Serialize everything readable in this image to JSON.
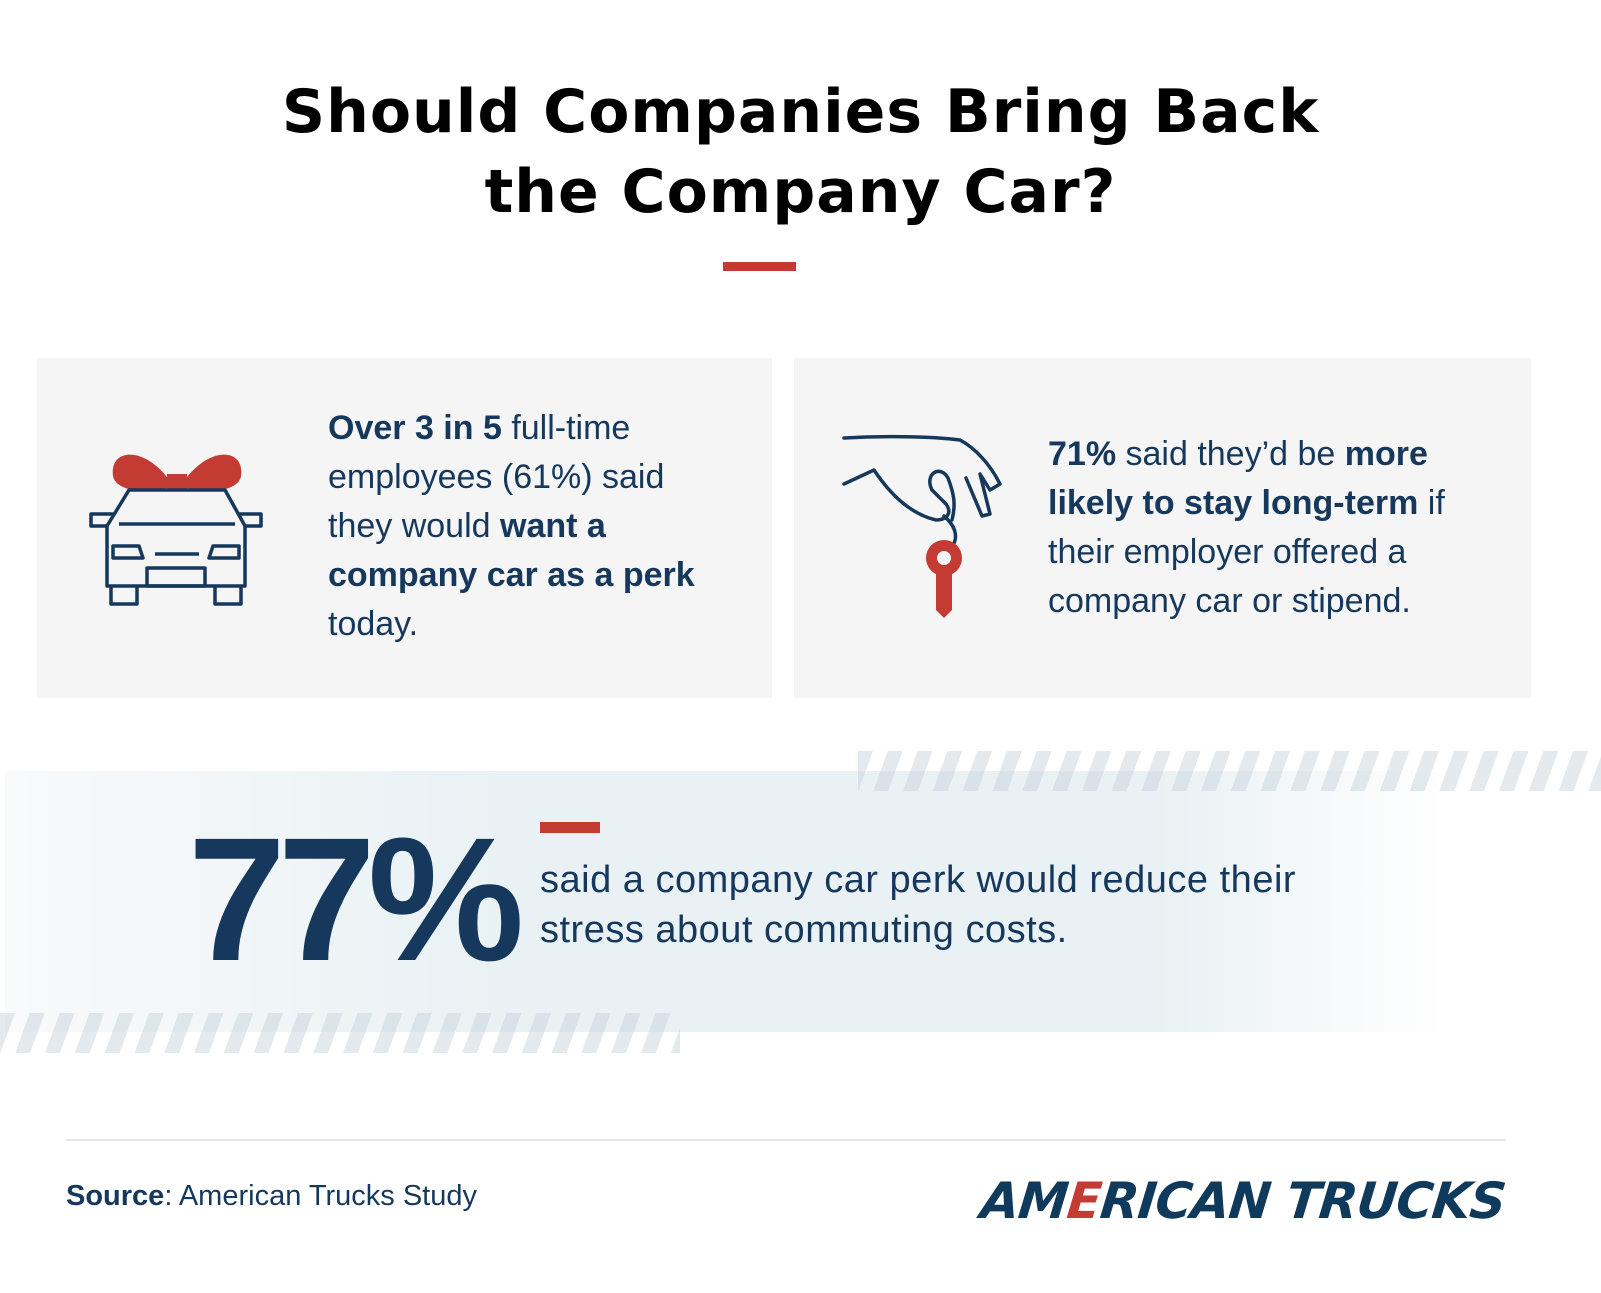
{
  "title": {
    "line1": "Should Companies Bring Back",
    "line2": "the Company Car?"
  },
  "colors": {
    "navy": "#15385c",
    "red": "#c43b34",
    "card_bg": "#f5f5f5"
  },
  "card1": {
    "icon": "gift-car-icon",
    "segments": [
      {
        "text": "Over 3 in 5",
        "bold": true
      },
      {
        "text": " full-time employees (61%) said they would ",
        "bold": false
      },
      {
        "text": "want a company car as a perk",
        "bold": true
      },
      {
        "text": " today.",
        "bold": false
      }
    ]
  },
  "card2": {
    "icon": "hand-key-icon",
    "segments": [
      {
        "text": "71%",
        "bold": true
      },
      {
        "text": " said they’d be ",
        "bold": false
      },
      {
        "text": "more likely to stay long-term",
        "bold": true
      },
      {
        "text": " if their employer offered a company car or stipend.",
        "bold": false
      }
    ]
  },
  "highlight": {
    "stat": "77%",
    "text": "said a company car perk would reduce their stress about commuting costs."
  },
  "footer": {
    "source_label": "Source",
    "source_text": ": American Trucks Study",
    "logo": {
      "part1": "AM",
      "part2": "E",
      "part3": "RICAN TRUCKS"
    }
  }
}
